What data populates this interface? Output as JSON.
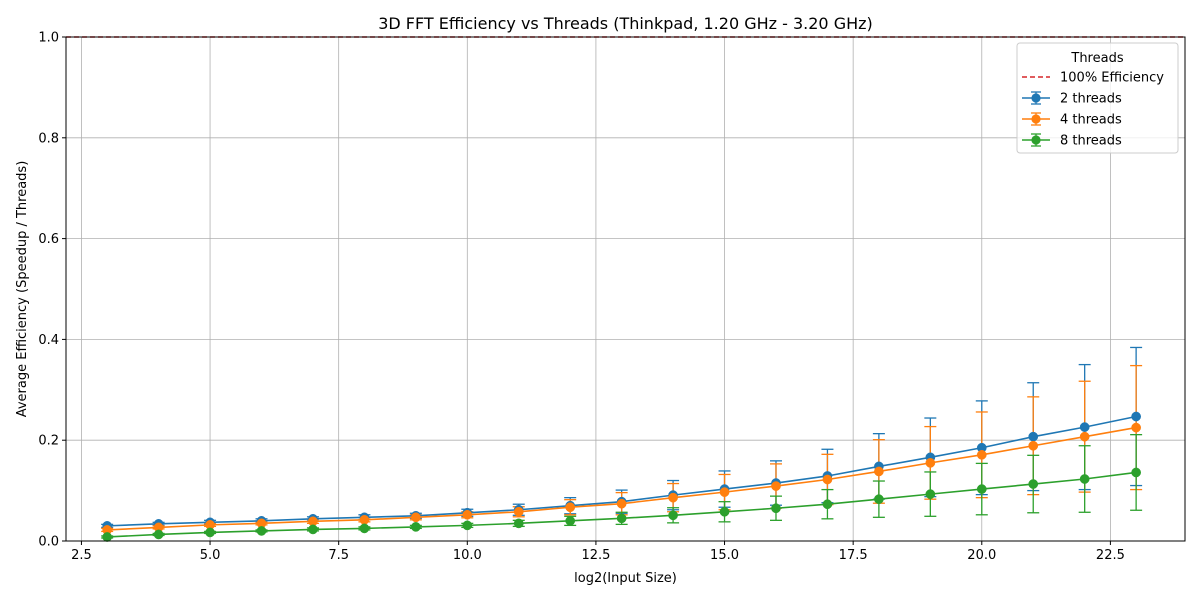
{
  "chart_data": {
    "type": "line",
    "title": "3D FFT Efficiency vs Threads (Thinkpad, 1.20 GHz - 3.20 GHz)",
    "xlabel": "log2(Input Size)",
    "ylabel": "Average Efficiency (Speedup / Threads)",
    "xlim": [
      2.2,
      23.95
    ],
    "ylim": [
      0,
      1.0
    ],
    "xticks": [
      2.5,
      5.0,
      7.5,
      10.0,
      12.5,
      15.0,
      17.5,
      20.0,
      22.5
    ],
    "xtick_labels": [
      "2.5",
      "5.0",
      "7.5",
      "10.0",
      "12.5",
      "15.0",
      "17.5",
      "20.0",
      "22.5"
    ],
    "yticks": [
      0.0,
      0.2,
      0.4,
      0.6,
      0.8,
      1.0
    ],
    "ytick_labels": [
      "0.0",
      "0.2",
      "0.4",
      "0.6",
      "0.8",
      "1.0"
    ],
    "grid": true,
    "legend": {
      "title": "Threads",
      "placement": "top-right",
      "reference_line_label": "100% Efficiency",
      "reference_line_color": "#d62728"
    },
    "reference_line": {
      "name": "100% Efficiency",
      "y": 1.0,
      "style": "dashed",
      "color": "#d62728"
    },
    "x": [
      3,
      4,
      5,
      6,
      7,
      8,
      9,
      10,
      11,
      12,
      13,
      14,
      15,
      16,
      17,
      18,
      19,
      20,
      21,
      22,
      23
    ],
    "series": [
      {
        "name": "2 threads",
        "color": "#1f77b4",
        "values": [
          0.03,
          0.034,
          0.037,
          0.04,
          0.044,
          0.047,
          0.05,
          0.056,
          0.062,
          0.07,
          0.078,
          0.091,
          0.103,
          0.115,
          0.129,
          0.148,
          0.166,
          0.185,
          0.207,
          0.226,
          0.247
        ],
        "error": [
          0.003,
          0.003,
          0.004,
          0.004,
          0.004,
          0.005,
          0.005,
          0.007,
          0.011,
          0.016,
          0.023,
          0.029,
          0.036,
          0.044,
          0.053,
          0.065,
          0.078,
          0.093,
          0.107,
          0.124,
          0.137
        ]
      },
      {
        "name": "4 threads",
        "color": "#ff7f0e",
        "values": [
          0.022,
          0.027,
          0.032,
          0.035,
          0.039,
          0.042,
          0.047,
          0.052,
          0.058,
          0.067,
          0.074,
          0.086,
          0.097,
          0.109,
          0.122,
          0.138,
          0.155,
          0.171,
          0.189,
          0.207,
          0.225
        ],
        "error": [
          0.003,
          0.003,
          0.003,
          0.003,
          0.004,
          0.004,
          0.005,
          0.006,
          0.01,
          0.015,
          0.022,
          0.028,
          0.035,
          0.044,
          0.05,
          0.063,
          0.072,
          0.085,
          0.097,
          0.11,
          0.123
        ]
      },
      {
        "name": "8 threads",
        "color": "#2ca02c",
        "values": [
          0.008,
          0.013,
          0.017,
          0.02,
          0.023,
          0.025,
          0.028,
          0.031,
          0.035,
          0.04,
          0.045,
          0.051,
          0.058,
          0.065,
          0.073,
          0.083,
          0.093,
          0.103,
          0.113,
          0.123,
          0.136
        ],
        "error": [
          0.002,
          0.002,
          0.002,
          0.002,
          0.003,
          0.003,
          0.003,
          0.004,
          0.006,
          0.009,
          0.012,
          0.015,
          0.02,
          0.024,
          0.029,
          0.036,
          0.044,
          0.051,
          0.057,
          0.066,
          0.075
        ]
      }
    ]
  }
}
